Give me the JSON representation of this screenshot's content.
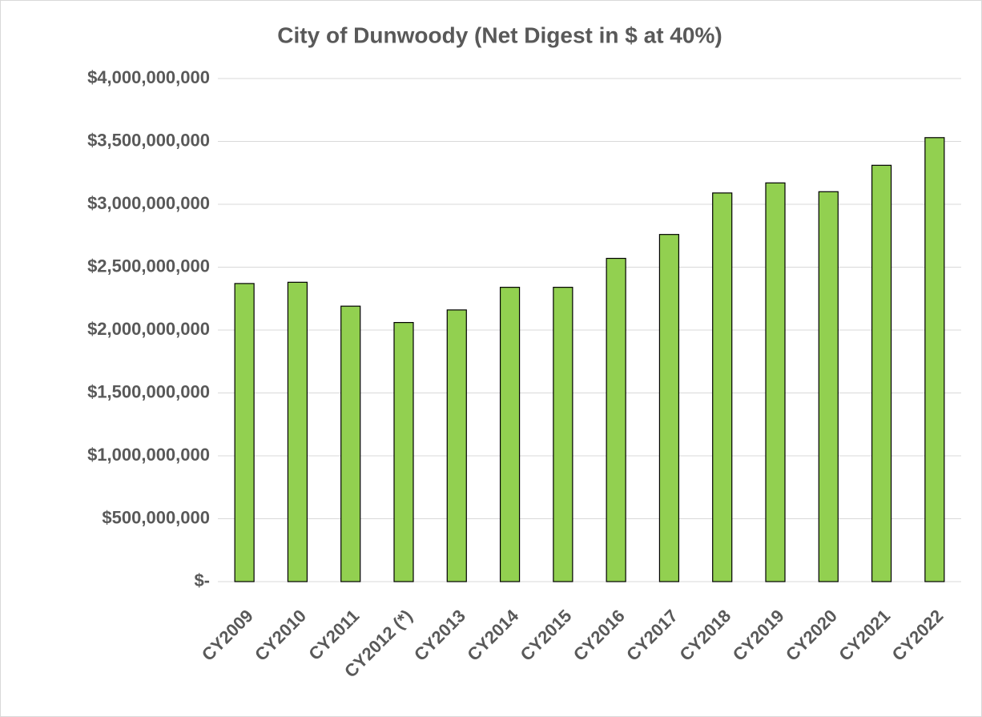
{
  "chart_data": {
    "type": "bar",
    "title": "City of Dunwoody (Net Digest in $ at 40%)",
    "categories": [
      "CY2009",
      "CY2010",
      "CY2011",
      "CY2012 (*)",
      "CY2013",
      "CY2014",
      "CY2015",
      "CY2016",
      "CY2017",
      "CY2018",
      "CY2019",
      "CY2020",
      "CY2021",
      "CY2022"
    ],
    "values": [
      2370000000,
      2380000000,
      2190000000,
      2060000000,
      2160000000,
      2340000000,
      2340000000,
      2570000000,
      2760000000,
      3090000000,
      3170000000,
      3100000000,
      3310000000,
      3530000000
    ],
    "color": "#92d050",
    "ylim": [
      0,
      4000000000
    ],
    "yticks": [
      {
        "value": 0,
        "label": "$-"
      },
      {
        "value": 500000000,
        "label": "$500,000,000"
      },
      {
        "value": 1000000000,
        "label": "$1,000,000,000"
      },
      {
        "value": 1500000000,
        "label": "$1,500,000,000"
      },
      {
        "value": 2000000000,
        "label": "$2,000,000,000"
      },
      {
        "value": 2500000000,
        "label": "$2,500,000,000"
      },
      {
        "value": 3000000000,
        "label": "$3,000,000,000"
      },
      {
        "value": 3500000000,
        "label": "$3,500,000,000"
      },
      {
        "value": 4000000000,
        "label": "$4,000,000,000"
      }
    ],
    "grid": true
  }
}
